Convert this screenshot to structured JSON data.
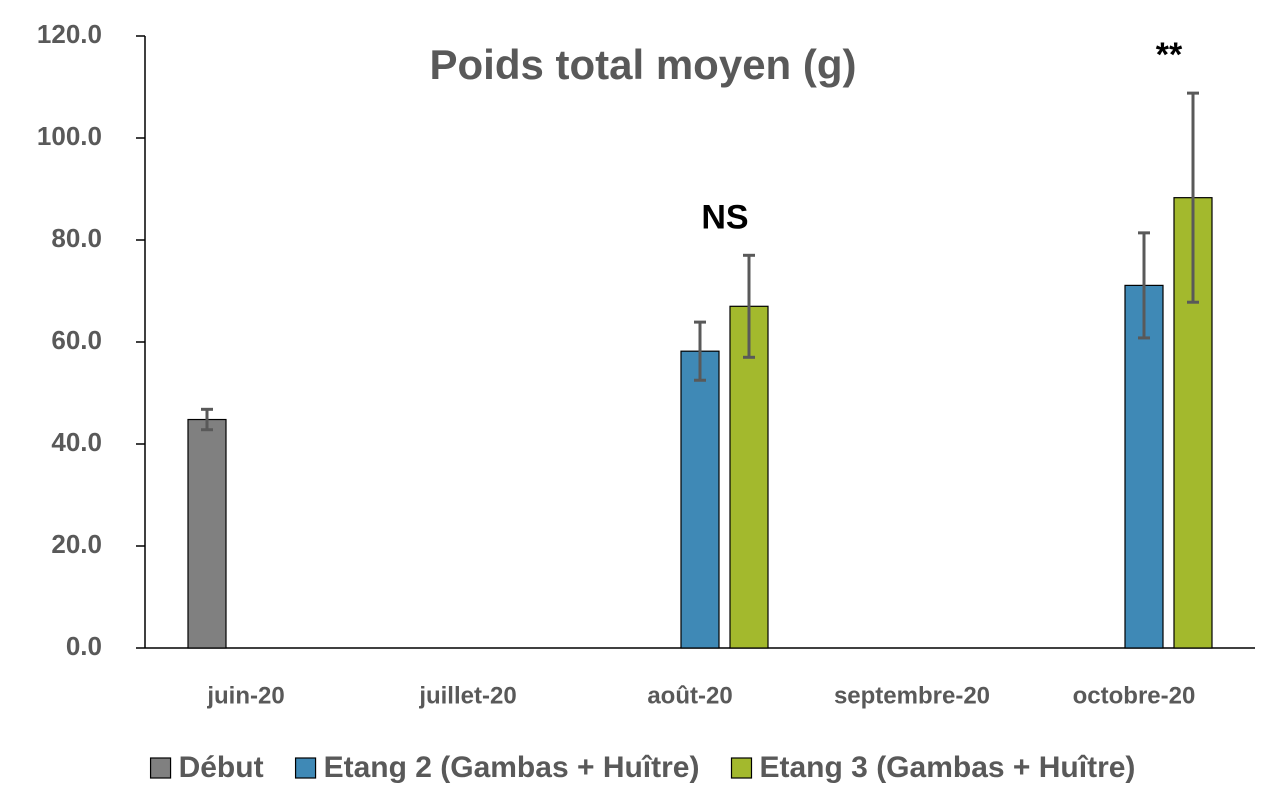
{
  "chart_data": {
    "type": "bar",
    "title": "Poids total moyen (g)",
    "categories": [
      "juin-20",
      "juillet-20",
      "août-20",
      "septembre-20",
      "octobre-20"
    ],
    "series": [
      {
        "name": "Début",
        "color": "#808080",
        "values": [
          44.8,
          null,
          null,
          null,
          null
        ],
        "errors": [
          2,
          null,
          null,
          null,
          null
        ]
      },
      {
        "name": "Etang 2 (Gambas + Huître)",
        "color": "#3f89b6",
        "values": [
          null,
          null,
          58.2,
          null,
          71.1
        ],
        "errors": [
          null,
          null,
          5.7,
          null,
          10.3
        ]
      },
      {
        "name": "Etang 3 (Gambas + Huître)",
        "color": "#a3b92d",
        "values": [
          null,
          null,
          67.0,
          null,
          88.3
        ],
        "errors": [
          null,
          null,
          10,
          null,
          20.5
        ]
      }
    ],
    "annotations": [
      {
        "text": "NS",
        "x": "août-20"
      },
      {
        "text": "**",
        "x": "octobre-20"
      }
    ],
    "ylim": [
      0,
      120
    ],
    "yticks": [
      {
        "value": 0,
        "label": "0.0"
      },
      {
        "value": 20,
        "label": "20.0"
      },
      {
        "value": 40,
        "label": "40.0"
      },
      {
        "value": 60,
        "label": "60.0"
      },
      {
        "value": 80,
        "label": "80.0"
      },
      {
        "value": 100,
        "label": "100.0"
      },
      {
        "value": 120,
        "label": "120.0"
      }
    ],
    "grid": false,
    "legend": "bottom"
  }
}
